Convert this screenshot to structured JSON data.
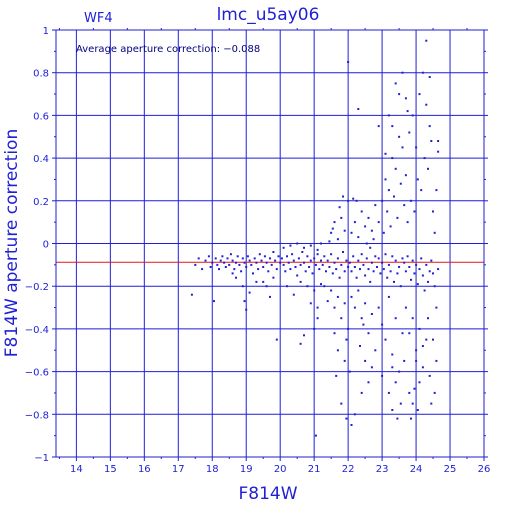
{
  "chart_data": {
    "type": "scatter",
    "title": "lmc_u5ay06",
    "chip_label": "WF4",
    "annotation": "Average aperture correction: −0.088",
    "xlabel": "F814W",
    "ylabel": "F814W aperture correction",
    "xlim": [
      13.4,
      26.0
    ],
    "ylim": [
      -1.0,
      1.0
    ],
    "x_ticks": [
      14,
      15,
      16,
      17,
      18,
      19,
      20,
      21,
      22,
      23,
      24,
      25,
      26
    ],
    "y_ticks": [
      1,
      0.8,
      0.6,
      0.4,
      0.2,
      0,
      -0.2,
      -0.4,
      -0.6,
      -0.8,
      -1
    ],
    "y_tick_labels": [
      "1",
      "0.8",
      "0.6",
      "0.4",
      "0.2",
      "0",
      "−0.2",
      "−0.4",
      "−0.6",
      "−0.8",
      "−1"
    ],
    "grid": true,
    "reference_line": {
      "y": -0.088,
      "color": "#e01818"
    },
    "point_color": "#1f1fd6",
    "points": [
      [
        17.4,
        -0.24
      ],
      [
        17.5,
        -0.1
      ],
      [
        17.6,
        -0.07
      ],
      [
        17.7,
        -0.12
      ],
      [
        17.8,
        -0.08
      ],
      [
        17.9,
        -0.06
      ],
      [
        17.95,
        -0.11
      ],
      [
        18.0,
        -0.09
      ],
      [
        18.05,
        -0.27
      ],
      [
        18.1,
        -0.07
      ],
      [
        18.15,
        -0.1
      ],
      [
        18.2,
        -0.12
      ],
      [
        18.25,
        -0.08
      ],
      [
        18.3,
        -0.06
      ],
      [
        18.35,
        -0.09
      ],
      [
        18.4,
        -0.11
      ],
      [
        18.45,
        -0.07
      ],
      [
        18.5,
        -0.1
      ],
      [
        18.55,
        -0.05
      ],
      [
        18.6,
        -0.08
      ],
      [
        18.65,
        -0.12
      ],
      [
        18.7,
        -0.09
      ],
      [
        18.75,
        -0.06
      ],
      [
        18.8,
        -0.1
      ],
      [
        18.85,
        -0.13
      ],
      [
        18.9,
        -0.07
      ],
      [
        18.95,
        -0.09
      ],
      [
        19.0,
        -0.11
      ],
      [
        19.05,
        -0.06
      ],
      [
        19.1,
        -0.08
      ],
      [
        19.15,
        -0.1
      ],
      [
        19.2,
        -0.14
      ],
      [
        19.25,
        -0.07
      ],
      [
        19.3,
        -0.09
      ],
      [
        19.35,
        -0.12
      ],
      [
        19.4,
        -0.05
      ],
      [
        19.45,
        -0.08
      ],
      [
        19.5,
        -0.11
      ],
      [
        19.55,
        -0.06
      ],
      [
        19.6,
        -0.09
      ],
      [
        19.65,
        -0.13
      ],
      [
        19.7,
        -0.07
      ],
      [
        19.75,
        -0.1
      ],
      [
        19.8,
        -0.04
      ],
      [
        19.85,
        -0.08
      ],
      [
        19.9,
        -0.12
      ],
      [
        19.95,
        -0.06
      ],
      [
        20.0,
        -0.09
      ],
      [
        18.9,
        -0.2
      ],
      [
        18.95,
        -0.27
      ],
      [
        19.0,
        -0.31
      ],
      [
        19.1,
        -0.23
      ],
      [
        19.3,
        -0.18
      ],
      [
        19.5,
        -0.18
      ],
      [
        19.6,
        -0.2
      ],
      [
        19.8,
        -0.16
      ],
      [
        19.9,
        -0.45
      ],
      [
        19.7,
        -0.25
      ],
      [
        18.7,
        -0.16
      ],
      [
        18.6,
        -0.14
      ],
      [
        20.05,
        -0.07
      ],
      [
        20.1,
        -0.1
      ],
      [
        20.15,
        -0.13
      ],
      [
        20.2,
        -0.06
      ],
      [
        20.25,
        -0.09
      ],
      [
        20.3,
        -0.12
      ],
      [
        20.35,
        -0.05
      ],
      [
        20.4,
        -0.08
      ],
      [
        20.45,
        -0.11
      ],
      [
        20.5,
        -0.15
      ],
      [
        20.55,
        -0.07
      ],
      [
        20.6,
        -0.1
      ],
      [
        20.65,
        -0.04
      ],
      [
        20.7,
        -0.09
      ],
      [
        20.75,
        -0.13
      ],
      [
        20.8,
        -0.06
      ],
      [
        20.85,
        -0.11
      ],
      [
        20.9,
        -0.08
      ],
      [
        20.95,
        -0.14
      ],
      [
        21.0,
        -0.07
      ],
      [
        21.05,
        -0.1
      ],
      [
        21.1,
        -0.05
      ],
      [
        21.15,
        -0.12
      ],
      [
        21.2,
        -0.08
      ],
      [
        20.2,
        -0.2
      ],
      [
        20.4,
        -0.24
      ],
      [
        20.6,
        -0.18
      ],
      [
        20.8,
        -0.2
      ],
      [
        20.9,
        -0.28
      ],
      [
        21.0,
        -0.22
      ],
      [
        21.1,
        -0.3
      ],
      [
        21.2,
        -0.19
      ],
      [
        21.1,
        -0.35
      ],
      [
        21.0,
        -0.4
      ],
      [
        20.7,
        -0.43
      ],
      [
        20.6,
        -0.47
      ],
      [
        21.05,
        -0.9
      ],
      [
        20.1,
        -0.02
      ],
      [
        20.3,
        -0.01
      ],
      [
        20.5,
        0.0
      ],
      [
        20.7,
        -0.02
      ],
      [
        20.9,
        -0.01
      ],
      [
        21.1,
        -0.03
      ],
      [
        21.2,
        0.0
      ],
      [
        21.25,
        -0.1
      ],
      [
        21.3,
        -0.06
      ],
      [
        21.35,
        -0.13
      ],
      [
        21.4,
        -0.08
      ],
      [
        21.45,
        -0.11
      ],
      [
        21.5,
        -0.05
      ],
      [
        21.55,
        -0.14
      ],
      [
        21.6,
        -0.09
      ],
      [
        21.65,
        -0.12
      ],
      [
        21.7,
        -0.07
      ],
      [
        21.75,
        -0.16
      ],
      [
        21.8,
        -0.1
      ],
      [
        21.85,
        -0.04
      ],
      [
        21.9,
        -0.13
      ],
      [
        21.95,
        -0.08
      ],
      [
        22.0,
        -0.11
      ],
      [
        21.3,
        -0.2
      ],
      [
        21.4,
        -0.27
      ],
      [
        21.5,
        -0.22
      ],
      [
        21.6,
        -0.3
      ],
      [
        21.7,
        -0.25
      ],
      [
        21.8,
        -0.35
      ],
      [
        21.9,
        -0.28
      ],
      [
        22.0,
        -0.4
      ],
      [
        21.5,
        0.05
      ],
      [
        21.6,
        0.1
      ],
      [
        21.7,
        0.02
      ],
      [
        21.8,
        0.12
      ],
      [
        21.9,
        0.06
      ],
      [
        22.0,
        0.2
      ],
      [
        21.85,
        0.22
      ],
      [
        21.75,
        0.17
      ],
      [
        21.6,
        -0.42
      ],
      [
        21.7,
        -0.5
      ],
      [
        21.9,
        -0.55
      ],
      [
        21.8,
        -0.75
      ],
      [
        21.65,
        -0.62
      ],
      [
        21.95,
        -0.45
      ],
      [
        21.55,
        0.07
      ],
      [
        21.45,
        0.01
      ],
      [
        22.05,
        -0.09
      ],
      [
        22.1,
        -0.13
      ],
      [
        22.15,
        -0.06
      ],
      [
        22.2,
        -0.11
      ],
      [
        22.25,
        -0.16
      ],
      [
        22.3,
        -0.08
      ],
      [
        22.35,
        -0.12
      ],
      [
        22.4,
        -0.05
      ],
      [
        22.45,
        -0.1
      ],
      [
        22.5,
        -0.15
      ],
      [
        22.55,
        -0.07
      ],
      [
        22.6,
        -0.12
      ],
      [
        22.65,
        -0.18
      ],
      [
        22.7,
        -0.09
      ],
      [
        22.75,
        -0.13
      ],
      [
        22.8,
        -0.06
      ],
      [
        22.1,
        -0.25
      ],
      [
        22.2,
        -0.3
      ],
      [
        22.3,
        -0.22
      ],
      [
        22.4,
        -0.35
      ],
      [
        22.5,
        -0.28
      ],
      [
        22.6,
        -0.42
      ],
      [
        22.7,
        -0.33
      ],
      [
        22.8,
        -0.5
      ],
      [
        22.1,
        0.05
      ],
      [
        22.2,
        0.1
      ],
      [
        22.3,
        0.03
      ],
      [
        22.4,
        0.15
      ],
      [
        22.5,
        0.08
      ],
      [
        22.6,
        0.12
      ],
      [
        22.7,
        0.06
      ],
      [
        22.8,
        0.18
      ],
      [
        22.15,
        0.21
      ],
      [
        22.25,
        0.2
      ],
      [
        22.3,
        0.63
      ],
      [
        22.5,
        -0.55
      ],
      [
        22.6,
        -0.65
      ],
      [
        22.7,
        -0.58
      ],
      [
        22.4,
        -0.7
      ],
      [
        22.2,
        -0.8
      ],
      [
        22.1,
        -0.85
      ],
      [
        21.95,
        -0.82
      ],
      [
        22.05,
        -0.6
      ],
      [
        22.35,
        -0.48
      ],
      [
        22.45,
        -0.38
      ],
      [
        22.55,
        0.0
      ],
      [
        22.65,
        -0.02
      ],
      [
        22.75,
        0.02
      ],
      [
        22.0,
        0.85
      ],
      [
        22.9,
        0.55
      ],
      [
        22.85,
        -0.11
      ],
      [
        22.9,
        -0.07
      ],
      [
        22.95,
        -0.14
      ],
      [
        23.0,
        -0.09
      ],
      [
        23.05,
        -0.12
      ],
      [
        23.1,
        -0.05
      ],
      [
        23.15,
        -0.16
      ],
      [
        23.2,
        -0.1
      ],
      [
        23.25,
        -0.13
      ],
      [
        23.3,
        -0.06
      ],
      [
        23.35,
        -0.18
      ],
      [
        23.4,
        -0.08
      ],
      [
        23.45,
        -0.14
      ],
      [
        23.5,
        -0.11
      ],
      [
        23.55,
        -0.2
      ],
      [
        23.6,
        -0.07
      ],
      [
        22.9,
        -0.3
      ],
      [
        23.0,
        -0.38
      ],
      [
        23.1,
        -0.45
      ],
      [
        23.2,
        -0.25
      ],
      [
        23.3,
        -0.52
      ],
      [
        23.4,
        -0.35
      ],
      [
        23.5,
        -0.6
      ],
      [
        23.6,
        -0.42
      ],
      [
        22.9,
        0.1
      ],
      [
        23.0,
        0.2
      ],
      [
        23.1,
        0.3
      ],
      [
        23.2,
        0.25
      ],
      [
        23.3,
        0.4
      ],
      [
        23.4,
        0.35
      ],
      [
        23.5,
        0.5
      ],
      [
        23.6,
        0.45
      ],
      [
        23.05,
        0.05
      ],
      [
        23.15,
        0.15
      ],
      [
        23.25,
        0.08
      ],
      [
        23.35,
        0.22
      ],
      [
        23.45,
        0.12
      ],
      [
        23.55,
        0.28
      ],
      [
        23.65,
        0.18
      ],
      [
        23.7,
        0.32
      ],
      [
        23.0,
        -0.62
      ],
      [
        23.2,
        -0.7
      ],
      [
        23.3,
        -0.78
      ],
      [
        23.4,
        -0.65
      ],
      [
        23.55,
        -0.75
      ],
      [
        23.65,
        -0.55
      ],
      [
        23.45,
        -0.82
      ],
      [
        23.3,
        -0.58
      ],
      [
        23.1,
        0.42
      ],
      [
        23.3,
        0.55
      ],
      [
        23.5,
        0.7
      ],
      [
        23.6,
        0.8
      ],
      [
        23.7,
        0.68
      ],
      [
        23.75,
        0.62
      ],
      [
        23.4,
        0.75
      ],
      [
        23.2,
        0.6
      ],
      [
        23.65,
        -0.09
      ],
      [
        23.7,
        -0.13
      ],
      [
        23.75,
        -0.06
      ],
      [
        23.8,
        -0.11
      ],
      [
        23.85,
        -0.17
      ],
      [
        23.9,
        -0.08
      ],
      [
        23.95,
        -0.14
      ],
      [
        24.0,
        -0.1
      ],
      [
        24.05,
        -0.19
      ],
      [
        24.1,
        -0.12
      ],
      [
        24.15,
        -0.07
      ],
      [
        24.2,
        -0.15
      ],
      [
        24.25,
        -0.22
      ],
      [
        24.3,
        -0.1
      ],
      [
        24.35,
        -0.18
      ],
      [
        24.4,
        -0.13
      ],
      [
        23.7,
        -0.3
      ],
      [
        23.8,
        -0.42
      ],
      [
        23.9,
        -0.35
      ],
      [
        24.0,
        -0.5
      ],
      [
        24.1,
        -0.4
      ],
      [
        24.2,
        -0.58
      ],
      [
        24.3,
        -0.45
      ],
      [
        24.4,
        -0.62
      ],
      [
        23.75,
        0.1
      ],
      [
        23.85,
        0.2
      ],
      [
        23.95,
        0.15
      ],
      [
        24.05,
        0.3
      ],
      [
        24.15,
        0.25
      ],
      [
        24.25,
        0.4
      ],
      [
        24.35,
        0.35
      ],
      [
        24.45,
        0.48
      ],
      [
        23.8,
        0.52
      ],
      [
        23.9,
        0.6
      ],
      [
        24.0,
        0.45
      ],
      [
        24.1,
        0.7
      ],
      [
        24.2,
        0.8
      ],
      [
        24.3,
        0.65
      ],
      [
        24.4,
        0.78
      ],
      [
        24.3,
        0.95
      ],
      [
        23.8,
        -0.7
      ],
      [
        23.9,
        -0.75
      ],
      [
        24.0,
        -0.55
      ],
      [
        24.1,
        -0.65
      ],
      [
        24.2,
        -0.48
      ],
      [
        23.85,
        -0.82
      ],
      [
        23.95,
        -0.68
      ],
      [
        24.05,
        -0.78
      ],
      [
        24.45,
        -0.08
      ],
      [
        24.5,
        -0.14
      ],
      [
        24.55,
        -0.2
      ],
      [
        24.6,
        -0.3
      ],
      [
        24.65,
        -0.12
      ],
      [
        24.5,
        -0.45
      ],
      [
        24.6,
        -0.55
      ],
      [
        24.55,
        0.05
      ],
      [
        24.6,
        0.25
      ],
      [
        24.65,
        0.48
      ],
      [
        24.5,
        0.15
      ],
      [
        24.45,
        -0.75
      ],
      [
        24.55,
        -0.7
      ],
      [
        24.65,
        0.43
      ],
      [
        24.4,
        0.55
      ],
      [
        24.35,
        -0.35
      ]
    ]
  }
}
